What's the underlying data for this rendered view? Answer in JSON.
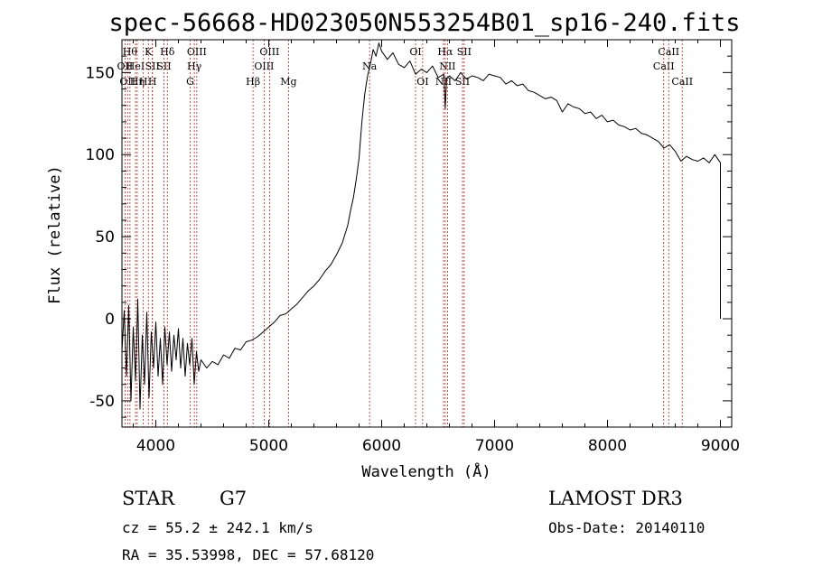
{
  "chart_data": {
    "type": "line",
    "title": "spec-56668-HD023050N553254B01_sp16-240.fits",
    "xlabel": "Wavelength (Å)",
    "ylabel": "Flux (relative)",
    "xlim": [
      3700,
      9100
    ],
    "ylim": [
      -66,
      170
    ],
    "x_ticks": [
      4000,
      5000,
      6000,
      7000,
      8000,
      9000
    ],
    "x_tick_labels": [
      "4000",
      "5000",
      "6000",
      "7000",
      "8000",
      "9000"
    ],
    "y_ticks": [
      -50,
      0,
      50,
      100,
      150
    ],
    "y_tick_labels": [
      "-50",
      "0",
      "50",
      "100",
      "150"
    ],
    "series": [
      {
        "name": "spectrum",
        "color": "#000000",
        "points": [
          [
            3700,
            -20
          ],
          [
            3720,
            5
          ],
          [
            3740,
            -35
          ],
          [
            3760,
            8
          ],
          [
            3780,
            -50
          ],
          [
            3800,
            -5
          ],
          [
            3820,
            -38
          ],
          [
            3840,
            12
          ],
          [
            3860,
            -55
          ],
          [
            3880,
            -10
          ],
          [
            3900,
            -40
          ],
          [
            3920,
            4
          ],
          [
            3940,
            -48
          ],
          [
            3960,
            -8
          ],
          [
            3980,
            -30
          ],
          [
            4000,
            -2
          ],
          [
            4020,
            -35
          ],
          [
            4040,
            -12
          ],
          [
            4060,
            -40
          ],
          [
            4080,
            -5
          ],
          [
            4100,
            -28
          ],
          [
            4120,
            -8
          ],
          [
            4140,
            -32
          ],
          [
            4160,
            -10
          ],
          [
            4180,
            -25
          ],
          [
            4200,
            -6
          ],
          [
            4220,
            -30
          ],
          [
            4240,
            -12
          ],
          [
            4260,
            -35
          ],
          [
            4280,
            -15
          ],
          [
            4300,
            -28
          ],
          [
            4320,
            -12
          ],
          [
            4340,
            -40
          ],
          [
            4360,
            -20
          ],
          [
            4380,
            -32
          ],
          [
            4400,
            -25
          ],
          [
            4450,
            -30
          ],
          [
            4500,
            -26
          ],
          [
            4550,
            -28
          ],
          [
            4600,
            -22
          ],
          [
            4650,
            -24
          ],
          [
            4700,
            -18
          ],
          [
            4750,
            -19
          ],
          [
            4800,
            -14
          ],
          [
            4850,
            -13
          ],
          [
            4900,
            -11
          ],
          [
            4950,
            -8
          ],
          [
            5000,
            -5
          ],
          [
            5050,
            -2
          ],
          [
            5100,
            2
          ],
          [
            5150,
            3
          ],
          [
            5200,
            6
          ],
          [
            5250,
            9
          ],
          [
            5300,
            13
          ],
          [
            5350,
            17
          ],
          [
            5400,
            20
          ],
          [
            5450,
            24
          ],
          [
            5500,
            29
          ],
          [
            5550,
            33
          ],
          [
            5600,
            39
          ],
          [
            5650,
            46
          ],
          [
            5700,
            57
          ],
          [
            5725,
            66
          ],
          [
            5750,
            74
          ],
          [
            5775,
            85
          ],
          [
            5800,
            98
          ],
          [
            5825,
            120
          ],
          [
            5850,
            137
          ],
          [
            5875,
            148
          ],
          [
            5900,
            155
          ],
          [
            5925,
            164
          ],
          [
            5950,
            160
          ],
          [
            5975,
            168
          ],
          [
            6000,
            163
          ],
          [
            6050,
            158
          ],
          [
            6100,
            162
          ],
          [
            6150,
            155
          ],
          [
            6200,
            153
          ],
          [
            6250,
            157
          ],
          [
            6300,
            149
          ],
          [
            6350,
            152
          ],
          [
            6400,
            150
          ],
          [
            6450,
            154
          ],
          [
            6500,
            147
          ],
          [
            6550,
            149
          ],
          [
            6563,
            128
          ],
          [
            6575,
            146
          ],
          [
            6600,
            148
          ],
          [
            6650,
            145
          ],
          [
            6700,
            150
          ],
          [
            6750,
            146
          ],
          [
            6800,
            148
          ],
          [
            6850,
            147
          ],
          [
            6900,
            145
          ],
          [
            6950,
            149
          ],
          [
            7000,
            148
          ],
          [
            7050,
            147
          ],
          [
            7100,
            143
          ],
          [
            7150,
            145
          ],
          [
            7200,
            142
          ],
          [
            7250,
            143
          ],
          [
            7300,
            139
          ],
          [
            7350,
            138
          ],
          [
            7400,
            136
          ],
          [
            7450,
            134
          ],
          [
            7500,
            135
          ],
          [
            7550,
            133
          ],
          [
            7600,
            126
          ],
          [
            7650,
            131
          ],
          [
            7700,
            129
          ],
          [
            7750,
            128
          ],
          [
            7800,
            125
          ],
          [
            7850,
            126
          ],
          [
            7900,
            122
          ],
          [
            7950,
            124
          ],
          [
            8000,
            120
          ],
          [
            8050,
            121
          ],
          [
            8100,
            118
          ],
          [
            8150,
            117
          ],
          [
            8200,
            115
          ],
          [
            8250,
            116
          ],
          [
            8300,
            113
          ],
          [
            8350,
            112
          ],
          [
            8400,
            110
          ],
          [
            8450,
            108
          ],
          [
            8500,
            104
          ],
          [
            8550,
            106
          ],
          [
            8600,
            102
          ],
          [
            8650,
            96
          ],
          [
            8700,
            99
          ],
          [
            8750,
            97
          ],
          [
            8800,
            96
          ],
          [
            8850,
            98
          ],
          [
            8900,
            95
          ],
          [
            8950,
            100
          ],
          [
            9000,
            95
          ],
          [
            9000,
            70
          ],
          [
            9000,
            30
          ],
          [
            9000,
            0
          ]
        ]
      }
    ],
    "reference_lines": [
      {
        "x": 3727,
        "label": "OII",
        "tier": 2
      },
      {
        "x": 3750,
        "label": "OII",
        "tier": 3
      },
      {
        "x": 3771,
        "label": "Hθ",
        "tier": 1
      },
      {
        "x": 3820,
        "label": "HeI",
        "tier": 2
      },
      {
        "x": 3835,
        "label": "Hη",
        "tier": 3
      },
      {
        "x": 3889,
        "label": "H",
        "tier": 3
      },
      {
        "x": 3934,
        "label": "K",
        "tier": 1
      },
      {
        "x": 3969,
        "label": "H",
        "tier": 3
      },
      {
        "x": 3970,
        "label": "SII",
        "tier": 2
      },
      {
        "x": 4072,
        "label": "SII",
        "tier": 2
      },
      {
        "x": 4102,
        "label": "Hδ",
        "tier": 1
      },
      {
        "x": 4304,
        "label": "G",
        "tier": 3
      },
      {
        "x": 4341,
        "label": "Hγ",
        "tier": 2
      },
      {
        "x": 4363,
        "label": "OIII",
        "tier": 1
      },
      {
        "x": 4861,
        "label": "Hβ",
        "tier": 3
      },
      {
        "x": 4959,
        "label": "OIII",
        "tier": 2
      },
      {
        "x": 5007,
        "label": "OIII",
        "tier": 1
      },
      {
        "x": 5175,
        "label": "Mg",
        "tier": 3
      },
      {
        "x": 5893,
        "label": "Na",
        "tier": 2
      },
      {
        "x": 6300,
        "label": "OI",
        "tier": 1
      },
      {
        "x": 6363,
        "label": "OI",
        "tier": 3
      },
      {
        "x": 6548,
        "label": "NII",
        "tier": 3
      },
      {
        "x": 6563,
        "label": "Hα",
        "tier": 1
      },
      {
        "x": 6583,
        "label": "NII",
        "tier": 2
      },
      {
        "x": 6716,
        "label": "SII",
        "tier": 3
      },
      {
        "x": 6731,
        "label": "SII",
        "tier": 1
      },
      {
        "x": 8498,
        "label": "CaII",
        "tier": 2
      },
      {
        "x": 8542,
        "label": "CaII",
        "tier": 1
      },
      {
        "x": 8662,
        "label": "CaII",
        "tier": 3
      }
    ]
  },
  "info": {
    "object_class": "STAR",
    "subclass": "G7",
    "survey": "LAMOST DR3",
    "redshift_text": "cz = 55.2 ± 242.1 km/s",
    "obs_date": "Obs-Date: 20140110",
    "coords": "RA =  35.53998, DEC =  57.68120"
  },
  "colors": {
    "spectrum": "#000000",
    "reference_line": "#b22222",
    "axis": "#000000"
  }
}
